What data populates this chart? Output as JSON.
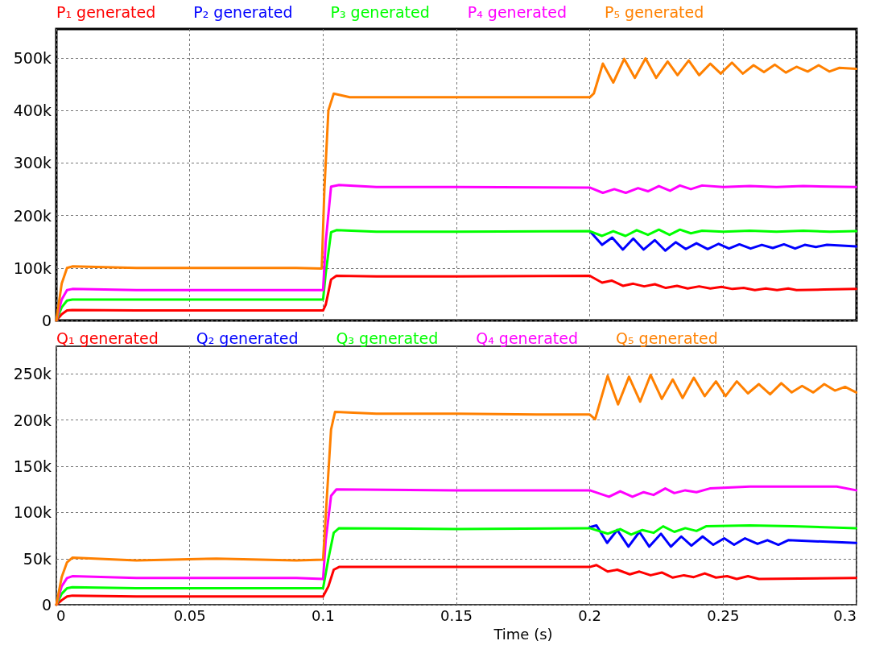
{
  "chart_data": [
    {
      "type": "line",
      "legend": "top",
      "grid": true,
      "marker": "none",
      "line_style": "solid",
      "tick_labels": "y",
      "xlim": [
        0,
        0.3
      ],
      "xticks": [
        0,
        0.05,
        0.1,
        0.15,
        0.2,
        0.25,
        0.3
      ],
      "ylim": [
        0,
        555000
      ],
      "yticks": [
        {
          "value": 0,
          "label": "0"
        },
        {
          "value": 100000,
          "label": "100k"
        },
        {
          "value": 200000,
          "label": "200k"
        },
        {
          "value": 300000,
          "label": "300k"
        },
        {
          "value": 400000,
          "label": "400k"
        },
        {
          "value": 500000,
          "label": "500k"
        }
      ],
      "series": [
        {
          "name": "P₁ generated",
          "color": "#ff0000",
          "x": [
            0,
            0.002,
            0.004,
            0.006,
            0.03,
            0.06,
            0.09,
            0.1,
            0.101,
            0.103,
            0.105,
            0.12,
            0.15,
            0.2,
            0.2046,
            0.2082,
            0.2124,
            0.2163,
            0.2204,
            0.2244,
            0.2285,
            0.2327,
            0.2367,
            0.241,
            0.2452,
            0.2494,
            0.2535,
            0.2577,
            0.2619,
            0.266,
            0.2702,
            0.2744,
            0.2775,
            0.2879,
            0.2999
          ],
          "values": [
            0,
            12000,
            19000,
            20000,
            19000,
            19000,
            19000,
            19000,
            30000,
            78000,
            85000,
            84000,
            84000,
            85000,
            72000,
            76000,
            66000,
            70000,
            65000,
            69000,
            62000,
            66000,
            61000,
            65000,
            61000,
            64000,
            60000,
            62000,
            58000,
            61000,
            58000,
            61000,
            58000,
            59000,
            60000
          ]
        },
        {
          "name": "P₂ generated",
          "color": "#0000ff",
          "x": [
            0.2,
            0.2046,
            0.2084,
            0.2124,
            0.2163,
            0.2202,
            0.2244,
            0.2283,
            0.2322,
            0.236,
            0.24,
            0.2442,
            0.2483,
            0.2522,
            0.2561,
            0.2603,
            0.2645,
            0.2686,
            0.2728,
            0.277,
            0.2806,
            0.2848,
            0.2889,
            0.2999
          ],
          "values": [
            170000,
            144000,
            158000,
            135000,
            156000,
            135000,
            153000,
            133000,
            149000,
            136000,
            147000,
            136000,
            146000,
            137000,
            145000,
            137000,
            144000,
            138000,
            145000,
            137000,
            144000,
            140000,
            144000,
            141000
          ]
        },
        {
          "name": "P₃ generated",
          "color": "#00ff00",
          "x": [
            0,
            0.002,
            0.004,
            0.006,
            0.05,
            0.1,
            0.101,
            0.103,
            0.105,
            0.12,
            0.15,
            0.2,
            0.2046,
            0.2088,
            0.2134,
            0.2176,
            0.2218,
            0.2259,
            0.2299,
            0.2338,
            0.2379,
            0.2421,
            0.25,
            0.26,
            0.27,
            0.28,
            0.29,
            0.2999
          ],
          "values": [
            0,
            25000,
            38000,
            40000,
            40000,
            40000,
            90000,
            168000,
            172000,
            169000,
            169000,
            170000,
            161000,
            170000,
            161000,
            172000,
            163000,
            173000,
            163000,
            173000,
            166000,
            171000,
            169000,
            171000,
            169000,
            171000,
            169000,
            170000
          ]
        },
        {
          "name": "P₄ generated",
          "color": "#ff00ff",
          "x": [
            0,
            0.002,
            0.004,
            0.006,
            0.03,
            0.06,
            0.09,
            0.1,
            0.101,
            0.103,
            0.106,
            0.12,
            0.15,
            0.2,
            0.2049,
            0.2092,
            0.2135,
            0.2181,
            0.2218,
            0.2259,
            0.2301,
            0.2338,
            0.2379,
            0.2421,
            0.25,
            0.26,
            0.27,
            0.28,
            0.29,
            0.2999
          ],
          "values": [
            0,
            40000,
            58000,
            60000,
            58000,
            58000,
            58000,
            58000,
            150000,
            255000,
            258000,
            254000,
            254000,
            253000,
            243000,
            250000,
            243000,
            252000,
            246000,
            256000,
            247000,
            257000,
            250000,
            257000,
            254000,
            256000,
            254000,
            256000,
            255000,
            254000
          ]
        },
        {
          "name": "P₅ generated",
          "color": "#ff8000",
          "x": [
            0,
            0.002,
            0.004,
            0.006,
            0.03,
            0.06,
            0.09,
            0.0995,
            0.1005,
            0.102,
            0.104,
            0.11,
            0.15,
            0.2,
            0.2015,
            0.2049,
            0.2088,
            0.2129,
            0.2169,
            0.2209,
            0.2249,
            0.2292,
            0.2329,
            0.2371,
            0.241,
            0.2452,
            0.2491,
            0.2533,
            0.2574,
            0.2614,
            0.2653,
            0.2694,
            0.2735,
            0.2775,
            0.2817,
            0.2858,
            0.2898,
            0.2936,
            0.2999
          ],
          "values": [
            0,
            70000,
            100000,
            103000,
            100000,
            100000,
            100000,
            99000,
            250000,
            400000,
            432000,
            425000,
            425000,
            425000,
            432000,
            489000,
            453000,
            498000,
            462000,
            499000,
            462000,
            493000,
            467000,
            495000,
            467000,
            489000,
            470000,
            491000,
            470000,
            486000,
            473000,
            487000,
            472000,
            483000,
            474000,
            486000,
            474000,
            481000,
            479000
          ]
        }
      ]
    },
    {
      "type": "line",
      "legend": "top",
      "grid": true,
      "marker": "none",
      "line_style": "solid",
      "xlabel": "Time (s)",
      "xlim": [
        0,
        0.3
      ],
      "xticks": [
        0,
        0.05,
        0.1,
        0.15,
        0.2,
        0.25,
        0.3
      ],
      "ylim": [
        0,
        280000
      ],
      "yticks": [
        {
          "value": 0,
          "label": "0"
        },
        {
          "value": 50000,
          "label": "50k"
        },
        {
          "value": 100000,
          "label": "100k"
        },
        {
          "value": 150000,
          "label": "150k"
        },
        {
          "value": 200000,
          "label": "200k"
        },
        {
          "value": 250000,
          "label": "250k"
        }
      ],
      "series": [
        {
          "name": "Q₁ generated",
          "color": "#ff0000",
          "x": [
            0,
            0.002,
            0.004,
            0.006,
            0.03,
            0.06,
            0.09,
            0.1,
            0.102,
            0.104,
            0.106,
            0.15,
            0.2,
            0.2025,
            0.2067,
            0.2103,
            0.215,
            0.2186,
            0.2228,
            0.227,
            0.2311,
            0.2353,
            0.239,
            0.2431,
            0.2473,
            0.2515,
            0.2551,
            0.2593,
            0.2634,
            0.2999
          ],
          "values": [
            0,
            5000,
            9000,
            10000,
            9000,
            9000,
            9000,
            9000,
            20000,
            38000,
            41000,
            41000,
            41000,
            43000,
            36000,
            38000,
            33000,
            36000,
            32000,
            35000,
            29500,
            32000,
            30000,
            34000,
            29500,
            31000,
            28000,
            31000,
            28000,
            29000
          ]
        },
        {
          "name": "Q₂ generated",
          "color": "#0000ff",
          "x": [
            0.2,
            0.2025,
            0.2065,
            0.2103,
            0.2145,
            0.2186,
            0.2223,
            0.2267,
            0.2304,
            0.2343,
            0.2381,
            0.2423,
            0.2463,
            0.2504,
            0.2541,
            0.2582,
            0.2629,
            0.2666,
            0.2707,
            0.2744,
            0.2999
          ],
          "values": [
            84000,
            86000,
            67000,
            81000,
            63000,
            79000,
            63000,
            77000,
            63000,
            74000,
            64000,
            74000,
            65000,
            72000,
            65000,
            72000,
            66000,
            70000,
            65000,
            70000,
            67000
          ]
        },
        {
          "name": "Q₃ generated",
          "color": "#00ff00",
          "x": [
            0,
            0.002,
            0.004,
            0.006,
            0.03,
            0.06,
            0.09,
            0.1,
            0.102,
            0.104,
            0.106,
            0.15,
            0.2,
            0.2067,
            0.2114,
            0.2155,
            0.2197,
            0.2239,
            0.2275,
            0.2317,
            0.2358,
            0.24,
            0.2436,
            0.26,
            0.2759,
            0.2999
          ],
          "values": [
            0,
            12000,
            18000,
            19000,
            18000,
            18000,
            18000,
            18000,
            50000,
            78000,
            83000,
            82000,
            83000,
            77000,
            82000,
            76000,
            81000,
            78000,
            85000,
            79000,
            83000,
            80000,
            85000,
            86000,
            85000,
            83000
          ]
        },
        {
          "name": "Q₄ generated",
          "color": "#ff00ff",
          "x": [
            0,
            0.002,
            0.004,
            0.006,
            0.03,
            0.06,
            0.09,
            0.1,
            0.101,
            0.103,
            0.105,
            0.15,
            0.2,
            0.2072,
            0.2114,
            0.216,
            0.2202,
            0.2239,
            0.2283,
            0.2317,
            0.2358,
            0.24,
            0.245,
            0.26,
            0.2765,
            0.2926,
            0.2999
          ],
          "values": [
            0,
            20000,
            29000,
            31000,
            29000,
            29000,
            29000,
            28000,
            70000,
            118000,
            125000,
            124000,
            124000,
            117000,
            123000,
            117000,
            122000,
            119000,
            126000,
            121000,
            124000,
            122000,
            126000,
            128000,
            128000,
            128000,
            124000
          ]
        },
        {
          "name": "Q₅ generated",
          "color": "#ff8000",
          "x": [
            0,
            0.002,
            0.004,
            0.006,
            0.03,
            0.06,
            0.09,
            0.1,
            0.1015,
            0.103,
            0.1045,
            0.12,
            0.15,
            0.18,
            0.2,
            0.202,
            0.2067,
            0.2106,
            0.2147,
            0.2189,
            0.2228,
            0.227,
            0.2311,
            0.2348,
            0.239,
            0.2431,
            0.2473,
            0.2509,
            0.2551,
            0.2593,
            0.2634,
            0.2676,
            0.2718,
            0.2757,
            0.2796,
            0.2838,
            0.2879,
            0.2919,
            0.2957,
            0.2999
          ],
          "values": [
            0,
            30000,
            46000,
            51000,
            48000,
            50000,
            48000,
            49000,
            120000,
            190000,
            209000,
            207000,
            207000,
            206000,
            206000,
            201000,
            248000,
            217000,
            247000,
            220000,
            249000,
            223000,
            244000,
            224000,
            246000,
            226000,
            242000,
            226000,
            242000,
            229000,
            239000,
            228000,
            240000,
            230000,
            237000,
            230000,
            239000,
            232000,
            236000,
            230000
          ]
        }
      ]
    }
  ]
}
